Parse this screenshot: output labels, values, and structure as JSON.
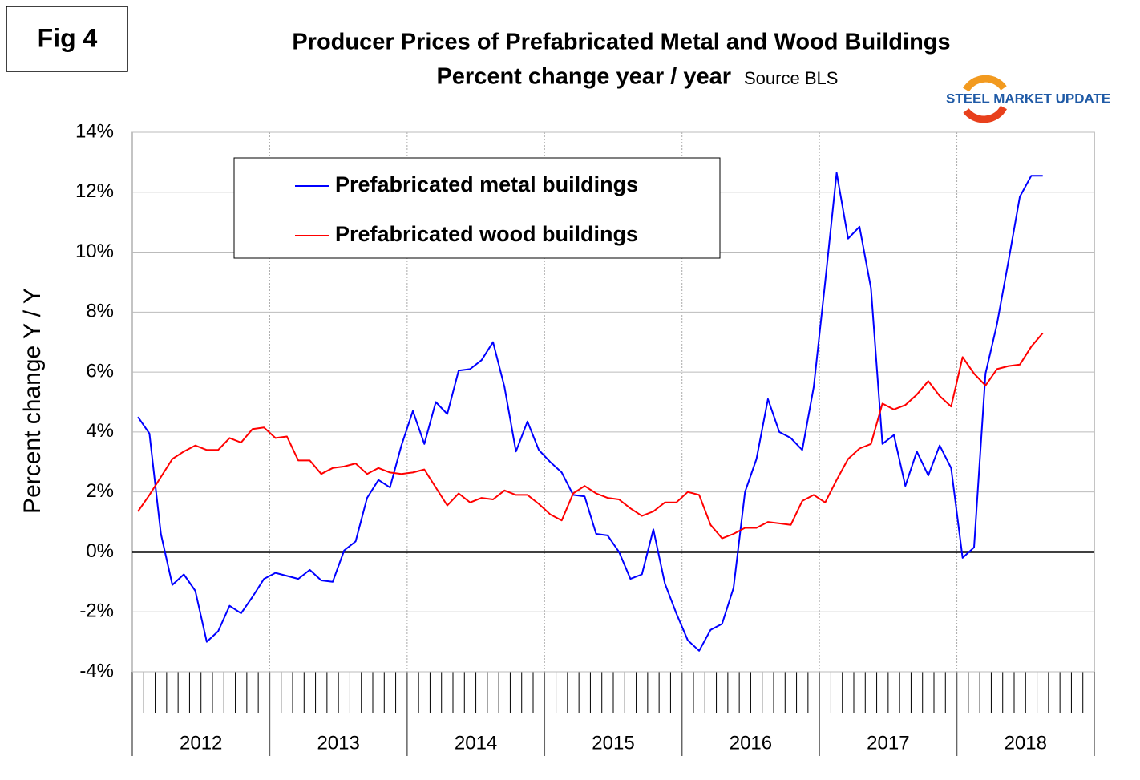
{
  "chart_data": {
    "type": "line",
    "figure_label": "Fig 4",
    "title": "Producer Prices of Prefabricated Metal and Wood Buildings",
    "subtitle": "Percent change year / year",
    "source": "Source BLS",
    "logo_text": "STEEL MARKET UPDATE",
    "y_label": "Percent change Y / Y",
    "categories": [
      null,
      null,
      null,
      null,
      null,
      null,
      "2012",
      null,
      null,
      null,
      null,
      null,
      null,
      null,
      null,
      null,
      null,
      null,
      "2013",
      null,
      null,
      null,
      null,
      null,
      null,
      null,
      null,
      null,
      null,
      null,
      "2014",
      null,
      null,
      null,
      null,
      null,
      null,
      null,
      null,
      null,
      null,
      null,
      "2015",
      null,
      null,
      null,
      null,
      null,
      null,
      null,
      null,
      null,
      null,
      null,
      "2016",
      null,
      null,
      null,
      null,
      null,
      null,
      null,
      null,
      null,
      null,
      null,
      "2017",
      null,
      null,
      null,
      null,
      null,
      null,
      null,
      null,
      null,
      null,
      null,
      "2018",
      null,
      null,
      null,
      null,
      null
    ],
    "series": [
      {
        "name": "Prefabricated metal buildings",
        "color": "#0000ff",
        "values": [
          4.5,
          3.95,
          0.6,
          -1.1,
          -0.75,
          -1.3,
          -3.0,
          -2.65,
          -1.8,
          -2.05,
          -1.5,
          -0.9,
          -0.7,
          -0.8,
          -0.9,
          -0.6,
          -0.95,
          -1.0,
          0.05,
          0.35,
          1.8,
          2.4,
          2.15,
          3.55,
          4.7,
          3.6,
          5.0,
          4.6,
          6.05,
          6.1,
          6.4,
          7.0,
          5.5,
          3.35,
          4.35,
          3.4,
          3.0,
          2.65,
          1.9,
          1.85,
          0.6,
          0.55,
          0.0,
          -0.9,
          -0.75,
          0.75,
          -1.05,
          -2.05,
          -2.95,
          -3.3,
          -2.6,
          -2.4,
          -1.2,
          2.0,
          3.1,
          5.1,
          4.0,
          3.8,
          3.4,
          5.5,
          9.0,
          12.65,
          10.45,
          10.85,
          8.8,
          3.6,
          3.9,
          2.2,
          3.35,
          2.55,
          3.55,
          2.8,
          -0.2,
          0.15,
          5.95,
          7.6,
          9.7,
          11.85,
          12.55,
          12.55,
          null,
          null,
          null,
          null
        ]
      },
      {
        "name": "Prefabricated wood buildings",
        "color": "#ff0000",
        "values": [
          1.35,
          1.9,
          2.5,
          3.1,
          3.35,
          3.55,
          3.4,
          3.4,
          3.8,
          3.65,
          4.1,
          4.15,
          3.8,
          3.85,
          3.05,
          3.05,
          2.6,
          2.8,
          2.85,
          2.95,
          2.6,
          2.8,
          2.65,
          2.6,
          2.65,
          2.75,
          2.15,
          1.55,
          1.95,
          1.65,
          1.8,
          1.75,
          2.05,
          1.9,
          1.9,
          1.6,
          1.25,
          1.05,
          1.95,
          2.2,
          1.95,
          1.8,
          1.75,
          1.45,
          1.2,
          1.35,
          1.65,
          1.65,
          2.0,
          1.9,
          0.9,
          0.45,
          0.6,
          0.8,
          0.8,
          1.0,
          0.95,
          0.9,
          1.7,
          1.9,
          1.65,
          2.4,
          3.1,
          3.45,
          3.6,
          4.95,
          4.75,
          4.9,
          5.25,
          5.7,
          5.2,
          4.85,
          6.5,
          5.95,
          5.55,
          6.1,
          6.2,
          6.25,
          6.85,
          7.3,
          null,
          null,
          null,
          null
        ]
      }
    ],
    "ylim": [
      -4,
      14
    ],
    "yticks": [
      {
        "value": -4,
        "label": "-4%"
      },
      {
        "value": -2,
        "label": "-2%"
      },
      {
        "value": 0,
        "label": "0%"
      },
      {
        "value": 2,
        "label": "2%"
      },
      {
        "value": 4,
        "label": "4%"
      },
      {
        "value": 6,
        "label": "6%"
      },
      {
        "value": 8,
        "label": "8%"
      },
      {
        "value": 10,
        "label": "10%"
      },
      {
        "value": 12,
        "label": "12%"
      },
      {
        "value": 14,
        "label": "14%"
      }
    ],
    "grid": true,
    "legend": "upper left"
  }
}
